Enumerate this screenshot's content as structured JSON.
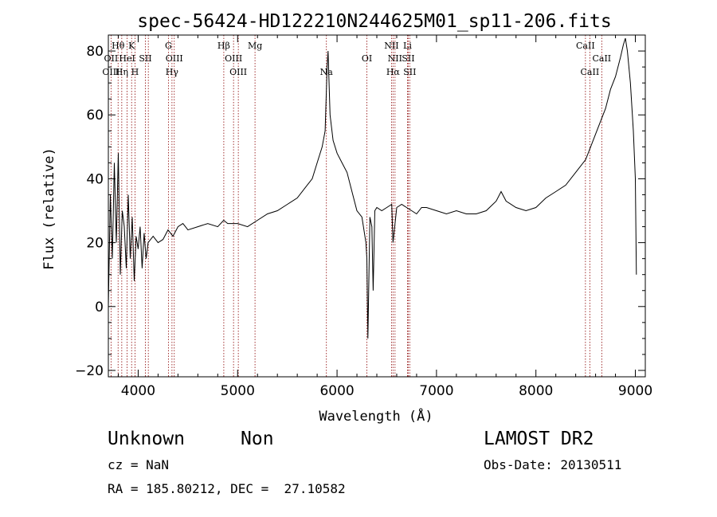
{
  "chart_data": {
    "type": "line",
    "title": "spec-56424-HD122210N244625M01_sp11-206.fits",
    "xlabel": "Wavelength (Å)",
    "ylabel": "Flux (relative)",
    "xlim": [
      3700,
      9100
    ],
    "ylim": [
      -22,
      85
    ],
    "xticks": [
      4000,
      5000,
      6000,
      7000,
      8000,
      9000
    ],
    "xtick_labels": [
      "4000",
      "5000",
      "6000",
      "7000",
      "8000",
      "9000"
    ],
    "yticks": [
      -20,
      0,
      20,
      40,
      60,
      80
    ],
    "ytick_labels": [
      "−20",
      "0",
      "20",
      "40",
      "60",
      "80"
    ],
    "grid": false,
    "series": [
      {
        "color": "#000000",
        "x": [
          3700,
          3720,
          3740,
          3760,
          3780,
          3800,
          3820,
          3840,
          3860,
          3880,
          3900,
          3920,
          3940,
          3960,
          3980,
          4000,
          4020,
          4040,
          4060,
          4080,
          4100,
          4150,
          4200,
          4250,
          4300,
          4350,
          4400,
          4450,
          4500,
          4600,
          4700,
          4800,
          4860,
          4900,
          5000,
          5100,
          5200,
          5300,
          5400,
          5500,
          5600,
          5700,
          5750,
          5800,
          5850,
          5880,
          5900,
          5910,
          5930,
          5960,
          6000,
          6050,
          6100,
          6150,
          6200,
          6250,
          6290,
          6300,
          6310,
          6330,
          6350,
          6363,
          6380,
          6400,
          6450,
          6500,
          6550,
          6563,
          6600,
          6650,
          6700,
          6750,
          6800,
          6850,
          6900,
          7000,
          7100,
          7200,
          7300,
          7400,
          7500,
          7600,
          7650,
          7700,
          7800,
          7900,
          8000,
          8100,
          8200,
          8300,
          8400,
          8500,
          8550,
          8600,
          8650,
          8700,
          8750,
          8800,
          8850,
          8880,
          8900,
          8920,
          8950,
          8980,
          9000,
          9010
        ],
        "y": [
          0,
          35,
          15,
          45,
          20,
          48,
          10,
          30,
          25,
          12,
          35,
          15,
          28,
          8,
          22,
          18,
          25,
          12,
          23,
          15,
          20,
          22,
          20,
          21,
          24,
          22,
          25,
          26,
          24,
          25,
          26,
          25,
          27,
          26,
          26,
          25,
          27,
          29,
          30,
          32,
          34,
          38,
          40,
          45,
          50,
          55,
          75,
          80,
          60,
          52,
          48,
          45,
          42,
          36,
          30,
          28,
          20,
          15,
          -10,
          28,
          25,
          5,
          30,
          31,
          30,
          31,
          32,
          20,
          31,
          32,
          31,
          30,
          29,
          31,
          31,
          30,
          29,
          30,
          29,
          29,
          30,
          33,
          36,
          33,
          31,
          30,
          31,
          34,
          36,
          38,
          42,
          46,
          50,
          54,
          58,
          62,
          68,
          72,
          78,
          82,
          84,
          80,
          70,
          55,
          40,
          10
        ]
      }
    ],
    "line_labels": [
      {
        "label": "Hθ",
        "x": 3798,
        "row": 1
      },
      {
        "label": "K",
        "x": 3934,
        "row": 1
      },
      {
        "label": "G",
        "x": 4304,
        "row": 1
      },
      {
        "label": "Hβ",
        "x": 4861,
        "row": 1
      },
      {
        "label": "Mg",
        "x": 5175,
        "row": 1
      },
      {
        "label": "NII",
        "x": 6548,
        "row": 1
      },
      {
        "label": "Li",
        "x": 6708,
        "row": 1
      },
      {
        "label": "CaII",
        "x": 8498,
        "row": 1
      },
      {
        "label": "OII",
        "x": 3727,
        "row": 2
      },
      {
        "label": "HeI",
        "x": 3889,
        "row": 2
      },
      {
        "label": "SII",
        "x": 4072,
        "row": 2
      },
      {
        "label": "OIII",
        "x": 4363,
        "row": 2
      },
      {
        "label": "OIII",
        "x": 4959,
        "row": 2
      },
      {
        "label": "OI",
        "x": 6300,
        "row": 2
      },
      {
        "label": "NII",
        "x": 6583,
        "row": 2
      },
      {
        "label": "SII",
        "x": 6716,
        "row": 2
      },
      {
        "label": "CaII",
        "x": 8662,
        "row": 2
      },
      {
        "label": "OIII",
        "x": 3727,
        "row": 3
      },
      {
        "label": "Hη",
        "x": 3835,
        "row": 3
      },
      {
        "label": "H",
        "x": 3968,
        "row": 3
      },
      {
        "label": "Hγ",
        "x": 4340,
        "row": 3
      },
      {
        "label": "OIII",
        "x": 5007,
        "row": 3
      },
      {
        "label": "Na",
        "x": 5893,
        "row": 3
      },
      {
        "label": "Hα",
        "x": 6563,
        "row": 3
      },
      {
        "label": "SII",
        "x": 6731,
        "row": 3
      },
      {
        "label": "CaII",
        "x": 8542,
        "row": 3
      }
    ],
    "marker_lines": [
      3727,
      3798,
      3835,
      3889,
      3934,
      3968,
      4072,
      4102,
      4304,
      4340,
      4363,
      4861,
      4959,
      5007,
      5175,
      5893,
      6300,
      6548,
      6563,
      6583,
      6708,
      6716,
      6731,
      8498,
      8542,
      8662
    ],
    "marker_color": "#8b0000"
  },
  "info": {
    "object_type": "Unknown",
    "subclass": "Non",
    "survey": "LAMOST DR2",
    "cz": "cz = NaN",
    "obs_date": "Obs-Date: 20130511",
    "coords": "RA = 185.80212, DEC =  27.10582"
  }
}
